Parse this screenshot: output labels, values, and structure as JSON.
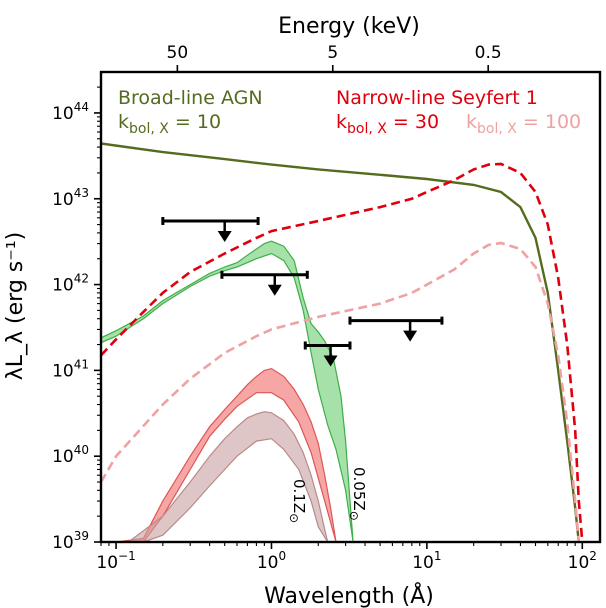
{
  "chart_data": {
    "type": "line",
    "xlabel": "Wavelength (Å)",
    "ylabel": "λL_λ (erg s⁻¹)",
    "top_xlabel": "Energy (keV)",
    "xscale": "log",
    "yscale": "log",
    "xlim": [
      0.08,
      130
    ],
    "ylim": [
      1e+39,
      3e+44
    ],
    "x_ticks": [
      {
        "value": 0.1,
        "base": "10",
        "exp": "−1"
      },
      {
        "value": 1,
        "base": "10",
        "exp": "0"
      },
      {
        "value": 10,
        "base": "10",
        "exp": "1"
      },
      {
        "value": 100,
        "base": "10",
        "exp": "2"
      }
    ],
    "y_ticks": [
      {
        "value": 1e+39,
        "base": "10",
        "exp": "39"
      },
      {
        "value": 1e+40,
        "base": "10",
        "exp": "40"
      },
      {
        "value": 1e+41,
        "base": "10",
        "exp": "41"
      },
      {
        "value": 1e+42,
        "base": "10",
        "exp": "42"
      },
      {
        "value": 1e+43,
        "base": "10",
        "exp": "43"
      },
      {
        "value": 1e+44,
        "base": "10",
        "exp": "44"
      }
    ],
    "top_ticks": [
      {
        "label": "50",
        "wavelength": 0.248
      },
      {
        "label": "5",
        "wavelength": 2.48
      },
      {
        "label": "0.5",
        "wavelength": 24.8
      }
    ],
    "annotations": {
      "blagn_title": "Broad-line AGN",
      "blagn_k": "k",
      "blagn_sub": "bol, X",
      "blagn_val": " = 10",
      "nls1_title": "Narrow-line Seyfert 1",
      "nls1_k": "k",
      "nls1_sub": "bol, X",
      "nls1_val": " = 30",
      "nls1b_k": "k",
      "nls1b_sub": "bol, X",
      "nls1b_val": " = 100",
      "z1_label": "0.1Z",
      "z2_label": "0.05Z",
      "sun_symbol": "⊙"
    },
    "series": [
      {
        "color": "#556b1e",
        "style": "solid",
        "points": [
          [
            0.08,
            4.4e+43
          ],
          [
            0.2,
            3.5e+43
          ],
          [
            0.5,
            2.9e+43
          ],
          [
            1,
            2.5e+43
          ],
          [
            2,
            2.2e+43
          ],
          [
            5,
            1.9e+43
          ],
          [
            10,
            1.7e+43
          ],
          [
            20,
            1.45e+43
          ],
          [
            30,
            1.2e+43
          ],
          [
            40,
            8e+42
          ],
          [
            50,
            3.5e+42
          ],
          [
            60,
            8e+41
          ],
          [
            70,
            1e+41
          ],
          [
            80,
            1.5e+40
          ],
          [
            90,
            2.5e+39
          ],
          [
            95,
            1e+39
          ]
        ]
      },
      {
        "color": "#e0000d",
        "style": "dashed",
        "points": [
          [
            0.08,
            1.5e+41
          ],
          [
            0.1,
            2.3e+41
          ],
          [
            0.15,
            4.8e+41
          ],
          [
            0.2,
            8e+41
          ],
          [
            0.3,
            1.4e+42
          ],
          [
            0.5,
            2.3e+42
          ],
          [
            0.8,
            3.5e+42
          ],
          [
            1,
            4.2e+42
          ],
          [
            2,
            5.5e+42
          ],
          [
            3,
            6.5e+42
          ],
          [
            5,
            8e+42
          ],
          [
            8,
            1e+43
          ],
          [
            10,
            1.2e+43
          ],
          [
            15,
            1.65e+43
          ],
          [
            20,
            2.2e+43
          ],
          [
            25,
            2.5e+43
          ],
          [
            30,
            2.55e+43
          ],
          [
            40,
            2e+43
          ],
          [
            50,
            1.2e+43
          ],
          [
            60,
            5e+42
          ],
          [
            70,
            1.2e+42
          ],
          [
            80,
            2e+41
          ],
          [
            90,
            2e+40
          ],
          [
            95,
            3e+39
          ],
          [
            100,
            1e+39
          ]
        ]
      },
      {
        "color": "#f0a1a1",
        "style": "dashed",
        "points": [
          [
            0.08,
            5e+39
          ],
          [
            0.1,
            1e+40
          ],
          [
            0.2,
            4e+40
          ],
          [
            0.3,
            8e+40
          ],
          [
            0.5,
            1.6e+41
          ],
          [
            0.8,
            2.5e+41
          ],
          [
            1,
            3e+41
          ],
          [
            2,
            4.2e+41
          ],
          [
            5,
            6e+41
          ],
          [
            8,
            8e+41
          ],
          [
            10,
            1e+42
          ],
          [
            15,
            1.5e+42
          ],
          [
            20,
            2.3e+42
          ],
          [
            25,
            2.9e+42
          ],
          [
            30,
            3.05e+42
          ],
          [
            40,
            2.6e+42
          ],
          [
            50,
            1.6e+42
          ],
          [
            60,
            6e+41
          ],
          [
            70,
            1.5e+41
          ],
          [
            80,
            2.5e+40
          ],
          [
            90,
            3e+39
          ],
          [
            95,
            1e+39
          ]
        ]
      }
    ],
    "bands": [
      {
        "color": "#5cc863",
        "opacity": 0.55,
        "edge": "#3fae4a",
        "upper": [
          [
            0.08,
            2.4e+41
          ],
          [
            0.1,
            2.9e+41
          ],
          [
            0.15,
            4.3e+41
          ],
          [
            0.2,
            6.5e+41
          ],
          [
            0.3,
            1e+42
          ],
          [
            0.4,
            1.35e+42
          ],
          [
            0.5,
            1.6e+42
          ],
          [
            0.6,
            1.8e+42
          ],
          [
            0.7,
            2.2e+42
          ],
          [
            0.8,
            2.6e+42
          ],
          [
            0.9,
            3e+42
          ],
          [
            1,
            3.2e+42
          ],
          [
            1.2,
            2.8e+42
          ],
          [
            1.4,
            1.9e+42
          ],
          [
            1.6,
            7e+41
          ],
          [
            1.8,
            3.5e+41
          ],
          [
            2,
            2.8e+41
          ],
          [
            2.2,
            2.2e+41
          ],
          [
            2.5,
            1.4e+41
          ],
          [
            2.8,
            5e+40
          ],
          [
            3,
            1.5e+40
          ],
          [
            3.2,
            3e+39
          ],
          [
            3.35,
            1e+39
          ]
        ],
        "lower": [
          [
            3.35,
            1e+39
          ],
          [
            3,
            4e+39
          ],
          [
            2.6,
            1.2e+40
          ],
          [
            2.3,
            2.3e+40
          ],
          [
            2,
            6e+40
          ],
          [
            1.8,
            1.6e+41
          ],
          [
            1.6,
            5e+41
          ],
          [
            1.4,
            1.2e+42
          ],
          [
            1.2,
            1.9e+42
          ],
          [
            1,
            2.3e+42
          ],
          [
            0.8,
            2e+42
          ],
          [
            0.6,
            1.6e+42
          ],
          [
            0.5,
            1.45e+42
          ],
          [
            0.4,
            1.25e+42
          ],
          [
            0.3,
            9.5e+41
          ],
          [
            0.2,
            6e+41
          ],
          [
            0.15,
            4e+41
          ],
          [
            0.1,
            2.5e+41
          ],
          [
            0.08,
            2.1e+41
          ]
        ]
      },
      {
        "color": "#f26b6b",
        "opacity": 0.6,
        "edge": "#e05555",
        "upper": [
          [
            0.1,
            1e+39
          ],
          [
            0.15,
            1.1e+39
          ],
          [
            0.2,
            3e+39
          ],
          [
            0.3,
            1e+40
          ],
          [
            0.4,
            2.2e+40
          ],
          [
            0.5,
            3.5e+40
          ],
          [
            0.6,
            5e+40
          ],
          [
            0.7,
            6.8e+40
          ],
          [
            0.8,
            8.5e+40
          ],
          [
            0.9,
            1e+41
          ],
          [
            1,
            1.05e+41
          ],
          [
            1.2,
            8.5e+40
          ],
          [
            1.4,
            6e+40
          ],
          [
            1.6,
            4e+40
          ],
          [
            1.8,
            2.5e+40
          ],
          [
            2,
            1.4e+40
          ],
          [
            2.2,
            6e+39
          ],
          [
            2.4,
            2.5e+39
          ],
          [
            2.6,
            1e+39
          ]
        ],
        "lower": [
          [
            2.6,
            1e+39
          ],
          [
            2.2,
            3e+39
          ],
          [
            1.8,
            1.1e+40
          ],
          [
            1.5,
            2.5e+40
          ],
          [
            1.2,
            4.5e+40
          ],
          [
            1,
            5.5e+40
          ],
          [
            0.8,
            5.5e+40
          ],
          [
            0.6,
            3.8e+40
          ],
          [
            0.5,
            2.7e+40
          ],
          [
            0.4,
            1.7e+40
          ],
          [
            0.3,
            7e+39
          ],
          [
            0.2,
            2e+39
          ],
          [
            0.15,
            1e+39
          ]
        ]
      },
      {
        "color": "#c9a0a0",
        "opacity": 0.6,
        "edge": "#b88a8a",
        "upper": [
          [
            0.12,
            1e+39
          ],
          [
            0.2,
            2e+39
          ],
          [
            0.3,
            5e+39
          ],
          [
            0.4,
            1e+40
          ],
          [
            0.5,
            1.6e+40
          ],
          [
            0.6,
            2.2e+40
          ],
          [
            0.7,
            2.8e+40
          ],
          [
            0.8,
            3.1e+40
          ],
          [
            0.9,
            3.3e+40
          ],
          [
            1,
            3.2e+40
          ],
          [
            1.2,
            2.6e+40
          ],
          [
            1.4,
            1.8e+40
          ],
          [
            1.6,
            1.1e+40
          ],
          [
            1.8,
            6e+39
          ],
          [
            2,
            3e+39
          ],
          [
            2.2,
            1.4e+39
          ],
          [
            2.3,
            1e+39
          ]
        ],
        "lower": [
          [
            2.3,
            1e+39
          ],
          [
            2,
            1.5e+39
          ],
          [
            1.8,
            3e+39
          ],
          [
            1.5,
            7e+39
          ],
          [
            1.2,
            1.2e+40
          ],
          [
            1,
            1.6e+40
          ],
          [
            0.8,
            1.5e+40
          ],
          [
            0.6,
            1e+40
          ],
          [
            0.5,
            7e+39
          ],
          [
            0.4,
            4.5e+39
          ],
          [
            0.3,
            2.5e+39
          ],
          [
            0.2,
            1.2e+39
          ],
          [
            0.15,
            1e+39
          ]
        ]
      }
    ],
    "upper_limits": [
      {
        "x": 0.5,
        "xmin": 0.2,
        "xmax": 0.82,
        "y": 5.5e+42
      },
      {
        "x": 1.05,
        "xmin": 0.48,
        "xmax": 1.7,
        "y": 1.3e+42
      },
      {
        "x": 2.4,
        "xmin": 1.65,
        "xmax": 3.2,
        "y": 1.95e+41
      },
      {
        "x": 7.8,
        "xmin": 3.2,
        "xmax": 12.5,
        "y": 3.8e+41
      }
    ]
  }
}
